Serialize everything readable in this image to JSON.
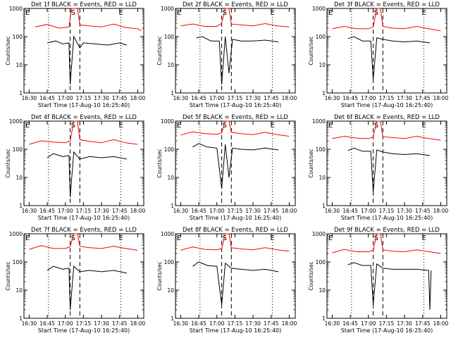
{
  "shared": {
    "ylabel": "Counts/sec",
    "xlabel": "Start Time (17-Aug-10 16:25:40)",
    "x_ticks": [
      "16:30",
      "16:45",
      "17:00",
      "17:15",
      "17:30",
      "17:45",
      "18:00"
    ],
    "y_ticks": [
      "1",
      "10",
      "100",
      "1000"
    ],
    "marker_labels": [
      "E",
      "S",
      "E"
    ],
    "colors": {
      "events": "#000000",
      "lld": "#ff0000",
      "axes": "#000000"
    }
  },
  "chart_data": [
    {
      "type": "line",
      "title": "Det 1f BLACK = Events, RED = LLD",
      "xlabel": "Start Time (17-Aug-10 16:25:40)",
      "ylabel": "Counts/sec",
      "xlim": [
        "16:25:40",
        "18:05"
      ],
      "ylim": [
        1,
        1000
      ],
      "yscale": "log",
      "vlines_dotted": [
        "16:46",
        "17:46"
      ],
      "vlines_dashed": [
        "17:04",
        "17:12"
      ],
      "series": [
        {
          "name": "LLD",
          "x": [
            "16:35",
            "16:45",
            "16:55",
            "17:03",
            "17:05",
            "17:07",
            "17:10",
            "17:12",
            "17:20",
            "17:30",
            "17:40",
            "17:50",
            "18:00",
            "18:03"
          ],
          "values": [
            220,
            270,
            200,
            220,
            1000,
            1000,
            1000,
            260,
            240,
            220,
            280,
            210,
            190,
            160
          ]
        },
        {
          "name": "Events",
          "x": [
            "16:45",
            "16:52",
            "16:58",
            "17:03",
            "17:04",
            "17:07",
            "17:12",
            "17:15",
            "17:25",
            "17:35",
            "17:45",
            "17:51"
          ],
          "values": [
            60,
            70,
            55,
            60,
            2,
            100,
            40,
            60,
            55,
            50,
            60,
            50
          ]
        }
      ]
    },
    {
      "type": "line",
      "title": "Det 2f BLACK = Events, RED = LLD",
      "xlabel": "Start Time (17-Aug-10 16:25:40)",
      "ylabel": "Counts/sec",
      "xlim": [
        "16:25:40",
        "18:05"
      ],
      "ylim": [
        1,
        1000
      ],
      "yscale": "log",
      "vlines_dotted": [
        "16:46",
        "17:46"
      ],
      "vlines_dashed": [
        "17:04",
        "17:12"
      ],
      "series": [
        {
          "name": "LLD",
          "x": [
            "16:30",
            "16:40",
            "16:50",
            "17:00",
            "17:04",
            "17:07",
            "17:10",
            "17:12",
            "17:20",
            "17:30",
            "17:40",
            "17:50",
            "18:00"
          ],
          "values": [
            240,
            280,
            230,
            230,
            300,
            1000,
            1000,
            280,
            260,
            240,
            290,
            240,
            220
          ]
        },
        {
          "name": "Events",
          "x": [
            "16:43",
            "16:48",
            "16:55",
            "17:02",
            "17:04",
            "17:07",
            "17:10",
            "17:13",
            "17:20",
            "17:30",
            "17:40",
            "17:51"
          ],
          "values": [
            90,
            100,
            70,
            70,
            2,
            100,
            5,
            80,
            70,
            70,
            75,
            65
          ]
        }
      ]
    },
    {
      "type": "line",
      "title": "Det 3f BLACK = Events, RED = LLD",
      "xlabel": "Start Time (17-Aug-10 16:25:40)",
      "ylabel": "Counts/sec",
      "xlim": [
        "16:25:40",
        "18:05"
      ],
      "ylim": [
        1,
        1000
      ],
      "yscale": "log",
      "vlines_dotted": [
        "16:46",
        "17:46"
      ],
      "vlines_dashed": [
        "17:04",
        "17:12"
      ],
      "series": [
        {
          "name": "LLD",
          "x": [
            "16:30",
            "16:40",
            "16:50",
            "17:00",
            "17:04",
            "17:07",
            "17:10",
            "17:12",
            "17:20",
            "17:30",
            "17:40",
            "17:50",
            "18:00"
          ],
          "values": [
            190,
            230,
            190,
            190,
            220,
            1000,
            1000,
            230,
            200,
            190,
            230,
            190,
            160
          ]
        },
        {
          "name": "Events",
          "x": [
            "16:43",
            "16:48",
            "16:55",
            "17:02",
            "17:04",
            "17:07",
            "17:12",
            "17:20",
            "17:30",
            "17:40",
            "17:51"
          ],
          "values": [
            85,
            100,
            70,
            70,
            3,
            90,
            80,
            70,
            65,
            70,
            60
          ]
        }
      ]
    },
    {
      "type": "line",
      "title": "Det 4f BLACK = Events, RED = LLD",
      "xlabel": "Start Time (17-Aug-10 16:25:40)",
      "ylabel": "Counts/sec",
      "xlim": [
        "16:25:40",
        "18:05"
      ],
      "ylim": [
        1,
        1000
      ],
      "yscale": "log",
      "vlines_dotted": [
        "16:46",
        "17:46"
      ],
      "vlines_dashed": [
        "17:04",
        "17:12"
      ],
      "series": [
        {
          "name": "LLD",
          "x": [
            "16:30",
            "16:40",
            "16:50",
            "17:00",
            "17:04",
            "17:07",
            "17:10",
            "17:12",
            "17:20",
            "17:30",
            "17:40",
            "17:50",
            "18:00"
          ],
          "values": [
            150,
            200,
            180,
            170,
            200,
            1000,
            1000,
            220,
            190,
            170,
            220,
            170,
            150
          ]
        },
        {
          "name": "Events",
          "x": [
            "16:45",
            "16:50",
            "16:58",
            "17:03",
            "17:04",
            "17:07",
            "17:12",
            "17:20",
            "17:30",
            "17:40",
            "17:51"
          ],
          "values": [
            50,
            70,
            55,
            60,
            2,
            80,
            45,
            55,
            50,
            55,
            45
          ]
        }
      ]
    },
    {
      "type": "line",
      "title": "Det 5f BLACK = Events, RED = LLD",
      "xlabel": "Start Time (17-Aug-10 16:25:40)",
      "ylabel": "Counts/sec",
      "xlim": [
        "16:25:40",
        "18:05"
      ],
      "ylim": [
        1,
        1000
      ],
      "yscale": "log",
      "vlines_dotted": [
        "16:46",
        "17:46"
      ],
      "vlines_dashed": [
        "17:04",
        "17:12"
      ],
      "series": [
        {
          "name": "LLD",
          "x": [
            "16:30",
            "16:40",
            "16:50",
            "17:00",
            "17:04",
            "17:07",
            "17:10",
            "17:12",
            "17:20",
            "17:30",
            "17:40",
            "17:50",
            "18:00"
          ],
          "values": [
            320,
            420,
            360,
            340,
            380,
            1000,
            1000,
            400,
            360,
            330,
            400,
            330,
            290
          ]
        },
        {
          "name": "Events",
          "x": [
            "16:40",
            "16:45",
            "16:52",
            "17:00",
            "17:04",
            "17:07",
            "17:10",
            "17:13",
            "17:20",
            "17:30",
            "17:40",
            "17:51"
          ],
          "values": [
            120,
            160,
            120,
            110,
            4,
            150,
            10,
            110,
            100,
            95,
            110,
            95
          ]
        }
      ]
    },
    {
      "type": "line",
      "title": "Det 6f BLACK = Events, RED = LLD",
      "xlabel": "Start Time (17-Aug-10 16:25:40)",
      "ylabel": "Counts/sec",
      "xlim": [
        "16:25:40",
        "18:05"
      ],
      "ylim": [
        1,
        1000
      ],
      "yscale": "log",
      "vlines_dotted": [
        "16:46",
        "17:46"
      ],
      "vlines_dashed": [
        "17:04",
        "17:12"
      ],
      "series": [
        {
          "name": "LLD",
          "x": [
            "16:30",
            "16:40",
            "16:50",
            "17:00",
            "17:04",
            "17:07",
            "17:10",
            "17:12",
            "17:20",
            "17:30",
            "17:40",
            "17:50",
            "18:00"
          ],
          "values": [
            240,
            290,
            250,
            240,
            270,
            1000,
            1000,
            280,
            260,
            240,
            290,
            240,
            210
          ]
        },
        {
          "name": "Events",
          "x": [
            "16:43",
            "16:48",
            "16:55",
            "17:02",
            "17:04",
            "17:07",
            "17:12",
            "17:20",
            "17:30",
            "17:40",
            "17:51"
          ],
          "values": [
            90,
            110,
            85,
            85,
            3,
            95,
            80,
            70,
            65,
            70,
            60
          ]
        }
      ]
    },
    {
      "type": "line",
      "title": "Det 7f BLACK = Events, RED = LLD",
      "xlabel": "Start Time (17-Aug-10 16:25:40)",
      "ylabel": "Counts/sec",
      "xlim": [
        "16:25:40",
        "18:05"
      ],
      "ylim": [
        1,
        1000
      ],
      "yscale": "log",
      "vlines_dotted": [
        "16:46",
        "17:46"
      ],
      "vlines_dashed": [
        "17:04",
        "17:12"
      ],
      "series": [
        {
          "name": "LLD",
          "x": [
            "16:30",
            "16:40",
            "16:50",
            "17:00",
            "17:04",
            "17:07",
            "17:10",
            "17:12",
            "17:20",
            "17:30",
            "17:40",
            "17:50",
            "18:00"
          ],
          "values": [
            280,
            380,
            300,
            300,
            350,
            1000,
            1000,
            360,
            320,
            300,
            360,
            300,
            260
          ]
        },
        {
          "name": "Events",
          "x": [
            "16:45",
            "16:50",
            "16:58",
            "17:03",
            "17:04",
            "17:07",
            "17:12",
            "17:20",
            "17:30",
            "17:40",
            "17:51"
          ],
          "values": [
            50,
            70,
            55,
            60,
            2,
            70,
            45,
            50,
            45,
            50,
            40
          ]
        }
      ]
    },
    {
      "type": "line",
      "title": "Det 8f BLACK = Events, RED = LLD",
      "xlabel": "Start Time (17-Aug-10 16:25:40)",
      "ylabel": "Counts/sec",
      "xlim": [
        "16:25:40",
        "18:05"
      ],
      "ylim": [
        1,
        1000
      ],
      "yscale": "log",
      "vlines_dotted": [
        "16:46",
        "17:46"
      ],
      "vlines_dashed": [
        "17:04",
        "17:12"
      ],
      "series": [
        {
          "name": "LLD",
          "x": [
            "16:30",
            "16:40",
            "16:50",
            "17:00",
            "17:04",
            "17:07",
            "17:10",
            "17:12",
            "17:20",
            "17:30",
            "17:40",
            "17:50",
            "18:00"
          ],
          "values": [
            260,
            340,
            280,
            270,
            300,
            1000,
            1000,
            320,
            290,
            270,
            320,
            270,
            240
          ]
        },
        {
          "name": "Events",
          "x": [
            "16:40",
            "16:45",
            "16:52",
            "17:00",
            "17:04",
            "17:07",
            "17:12",
            "17:20",
            "17:30",
            "17:40",
            "17:51"
          ],
          "values": [
            70,
            100,
            75,
            70,
            3,
            90,
            60,
            55,
            50,
            55,
            45
          ]
        }
      ]
    },
    {
      "type": "line",
      "title": "Det 9f BLACK = Events, RED = LLD",
      "xlabel": "Start Time (17-Aug-10 16:25:40)",
      "ylabel": "Counts/sec",
      "xlim": [
        "16:25:40",
        "18:05"
      ],
      "ylim": [
        1,
        1000
      ],
      "yscale": "log",
      "vlines_dotted": [
        "16:46",
        "17:46"
      ],
      "vlines_dashed": [
        "17:04",
        "17:12"
      ],
      "series": [
        {
          "name": "LLD",
          "x": [
            "16:30",
            "16:40",
            "16:50",
            "17:00",
            "17:04",
            "17:07",
            "17:10",
            "17:12",
            "17:20",
            "17:30",
            "17:40",
            "17:50",
            "18:00"
          ],
          "values": [
            210,
            280,
            230,
            230,
            260,
            1000,
            1000,
            270,
            240,
            230,
            270,
            230,
            200
          ]
        },
        {
          "name": "Events",
          "x": [
            "16:43",
            "16:48",
            "16:55",
            "17:02",
            "17:04",
            "17:07",
            "17:12",
            "17:20",
            "17:30",
            "17:40",
            "17:50",
            "17:51",
            "17:52"
          ],
          "values": [
            80,
            95,
            75,
            75,
            3,
            85,
            60,
            55,
            55,
            55,
            50,
            2,
            50
          ]
        }
      ]
    }
  ]
}
